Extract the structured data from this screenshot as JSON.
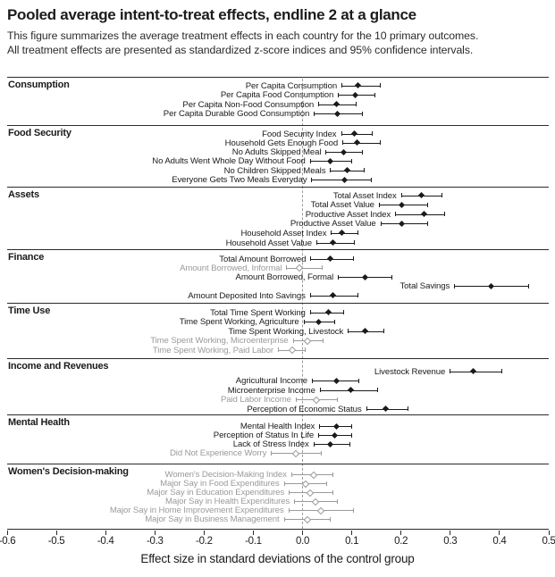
{
  "figure": {
    "title": "Pooled average intent-to-treat effects, endline 2 at a glance",
    "subtitle_line1": "This figure summarizes the average treatment effects in each country for the 10 primary outcomes.",
    "subtitle_line2": "All treatment effects are presented as standardized z-score indices and 95% confidence intervals."
  },
  "chart_data": {
    "type": "scatter",
    "variant": "forest-plot-dot-whisker",
    "title": "Pooled average intent-to-treat effects, endline 2 at a glance",
    "xlabel": "Effect size in standard deviations of the control group",
    "xlim": [
      -0.6,
      0.5
    ],
    "x_tick_values": [
      -0.6,
      -0.5,
      -0.4,
      -0.3,
      -0.2,
      -0.1,
      0.0,
      0.1,
      0.2,
      0.3,
      0.4,
      0.5
    ],
    "x_tick_labels": [
      "-0.6",
      "-0.5",
      "-0.4",
      "-0.3",
      "-0.2",
      "-0.1",
      "0.0",
      "0.1",
      "0.2",
      "0.3",
      "0.4",
      "0.5"
    ],
    "zero_reference_line": 0.0,
    "grid": false,
    "legend": "none",
    "colors": {
      "significant": "#1b1b1b",
      "insignificant": "#9a9a9a",
      "zero_line": "#9b9b9b",
      "rule": "#2a2a2a"
    },
    "marker_note": "filled diamond = significant (dark), open diamond = not significant (gray); horizontal bars are 95% CIs",
    "sections": [
      {
        "name": "Consumption",
        "rows": [
          {
            "label": "Per Capita Consumption",
            "value": 0.114,
            "ci": [
              0.079,
              0.157
            ],
            "significant": true
          },
          {
            "label": "Per Capita Food Consumption",
            "value": 0.108,
            "ci": [
              0.072,
              0.146
            ],
            "significant": true
          },
          {
            "label": "Per Capita Non-Food Consumption",
            "value": 0.07,
            "ci": [
              0.032,
              0.108
            ],
            "significant": true
          },
          {
            "label": "Per Capita Durable Good Consumption",
            "value": 0.072,
            "ci": [
              0.023,
              0.121
            ],
            "significant": true
          }
        ]
      },
      {
        "name": "Food Security",
        "rows": [
          {
            "label": "Food Security Index",
            "value": 0.106,
            "ci": [
              0.078,
              0.14
            ],
            "significant": true
          },
          {
            "label": "Household Gets Enough Food",
            "value": 0.111,
            "ci": [
              0.081,
              0.157
            ],
            "significant": true
          },
          {
            "label": "No Adults Skipped Meal",
            "value": 0.084,
            "ci": [
              0.047,
              0.12
            ],
            "significant": true
          },
          {
            "label": "No Adults Went Whole Day Without Food",
            "value": 0.058,
            "ci": [
              0.015,
              0.098
            ],
            "significant": true
          },
          {
            "label": "No Children Skipped Meals",
            "value": 0.091,
            "ci": [
              0.056,
              0.125
            ],
            "significant": true
          },
          {
            "label": "Everyone Gets Two Meals Everyday",
            "value": 0.086,
            "ci": [
              0.018,
              0.139
            ],
            "significant": true
          }
        ]
      },
      {
        "name": "Assets",
        "rows": [
          {
            "label": "Total Asset Index",
            "value": 0.242,
            "ci": [
              0.2,
              0.282
            ],
            "significant": true
          },
          {
            "label": "Total Asset Value",
            "value": 0.203,
            "ci": [
              0.155,
              0.254
            ],
            "significant": true
          },
          {
            "label": "Productive Asset Index",
            "value": 0.247,
            "ci": [
              0.188,
              0.288
            ],
            "significant": true
          },
          {
            "label": "Productive Asset Value",
            "value": 0.202,
            "ci": [
              0.158,
              0.254
            ],
            "significant": true
          },
          {
            "label": "Household Asset Index",
            "value": 0.081,
            "ci": [
              0.058,
              0.112
            ],
            "significant": true
          },
          {
            "label": "Household Asset Value",
            "value": 0.063,
            "ci": [
              0.028,
              0.105
            ],
            "significant": true
          }
        ]
      },
      {
        "name": "Finance",
        "rows": [
          {
            "label": "Total Amount Borrowed",
            "value": 0.057,
            "ci": [
              0.016,
              0.102
            ],
            "significant": true
          },
          {
            "label": "Amount Borrowed, Informal",
            "value": -0.006,
            "ci": [
              -0.033,
              0.039
            ],
            "significant": false
          },
          {
            "label": "Amount Borrowed, Formal",
            "value": 0.128,
            "ci": [
              0.072,
              0.18
            ],
            "significant": true
          },
          {
            "label": "Total Savings",
            "value": 0.383,
            "ci": [
              0.308,
              0.458
            ],
            "significant": true
          },
          {
            "label": "Amount Deposited Into Savings",
            "value": 0.063,
            "ci": [
              0.015,
              0.112
            ],
            "significant": true
          }
        ]
      },
      {
        "name": "Time Use",
        "rows": [
          {
            "label": "Total Time Spent Working",
            "value": 0.054,
            "ci": [
              0.015,
              0.082
            ],
            "significant": true
          },
          {
            "label": "Time Spent Working, Agriculture",
            "value": 0.034,
            "ci": [
              0.002,
              0.064
            ],
            "significant": true
          },
          {
            "label": "Time Spent Working, Livestock",
            "value": 0.128,
            "ci": [
              0.092,
              0.164
            ],
            "significant": true
          },
          {
            "label": "Time Spent Working, Microenterprise",
            "value": 0.009,
            "ci": [
              -0.02,
              0.04
            ],
            "significant": false
          },
          {
            "label": "Time Spent Working, Paid Labor",
            "value": -0.021,
            "ci": [
              -0.05,
              0.004
            ],
            "significant": false
          }
        ]
      },
      {
        "name": "Income and Revenues",
        "rows": [
          {
            "label": "Livestock Revenue",
            "value": 0.348,
            "ci": [
              0.299,
              0.403
            ],
            "significant": true
          },
          {
            "label": "Agricultural Income",
            "value": 0.069,
            "ci": [
              0.019,
              0.114
            ],
            "significant": true
          },
          {
            "label": "Microenterprise Income",
            "value": 0.099,
            "ci": [
              0.035,
              0.152
            ],
            "significant": true
          },
          {
            "label": "Paid Labor Income",
            "value": 0.028,
            "ci": [
              -0.014,
              0.07
            ],
            "significant": false
          },
          {
            "label": "Perception of Economic Status",
            "value": 0.17,
            "ci": [
              0.129,
              0.213
            ],
            "significant": true
          }
        ]
      },
      {
        "name": "Mental Health",
        "rows": [
          {
            "label": "Mental Health Index",
            "value": 0.069,
            "ci": [
              0.034,
              0.099
            ],
            "significant": true
          },
          {
            "label": "Perception of Status In Life",
            "value": 0.066,
            "ci": [
              0.032,
              0.099
            ],
            "significant": true
          },
          {
            "label": "Lack of Stress Index",
            "value": 0.058,
            "ci": [
              0.022,
              0.096
            ],
            "significant": true
          },
          {
            "label": "Did Not Experience Worry",
            "value": -0.014,
            "ci": [
              -0.064,
              0.037
            ],
            "significant": false
          }
        ]
      },
      {
        "name": "Women's Decision-making",
        "rows": [
          {
            "label": "Women's Decision-Making Index",
            "value": 0.022,
            "ci": [
              -0.023,
              0.061
            ],
            "significant": false
          },
          {
            "label": "Major Say in Food Expenditures",
            "value": 0.006,
            "ci": [
              -0.038,
              0.048
            ],
            "significant": false
          },
          {
            "label": "Major Say in Education Expenditures",
            "value": 0.016,
            "ci": [
              -0.028,
              0.061
            ],
            "significant": false
          },
          {
            "label": "Major Say in Health Expenditures",
            "value": 0.027,
            "ci": [
              -0.017,
              0.069
            ],
            "significant": false
          },
          {
            "label": "Major Say in Home Improvement Expenditures",
            "value": 0.038,
            "ci": [
              -0.029,
              0.103
            ],
            "significant": false
          },
          {
            "label": "Major Say in Business Management",
            "value": 0.009,
            "ci": [
              -0.038,
              0.056
            ],
            "significant": false
          }
        ]
      }
    ]
  }
}
